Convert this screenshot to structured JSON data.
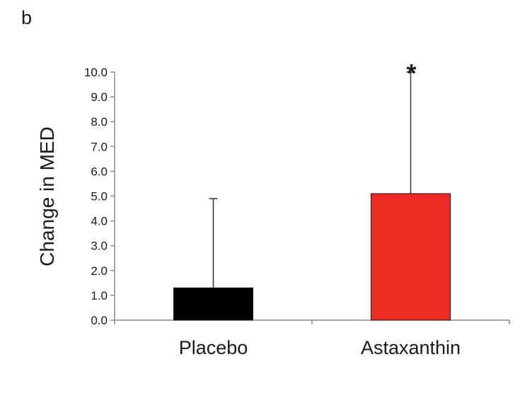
{
  "panel_label": "b",
  "chart_data": {
    "type": "bar",
    "categories": [
      "Placebo",
      "Astaxanthin"
    ],
    "values": [
      1.3,
      5.1
    ],
    "error_upper": [
      4.9,
      10.0
    ],
    "colors": [
      "#000000",
      "#ee2a24"
    ],
    "ylabel": "Change in MED",
    "ylim": [
      0,
      10
    ],
    "yticks": [
      0,
      1,
      2,
      3,
      4,
      5,
      6,
      7,
      8,
      9,
      10
    ],
    "ytick_labels": [
      "0.0",
      "1.0",
      "2.0",
      "3.0",
      "4.0",
      "5.0",
      "6.0",
      "7.0",
      "8.0",
      "9.0",
      "10.0"
    ],
    "grid": false,
    "annotations": [
      {
        "category": "Astaxanthin",
        "text": "*"
      }
    ]
  }
}
